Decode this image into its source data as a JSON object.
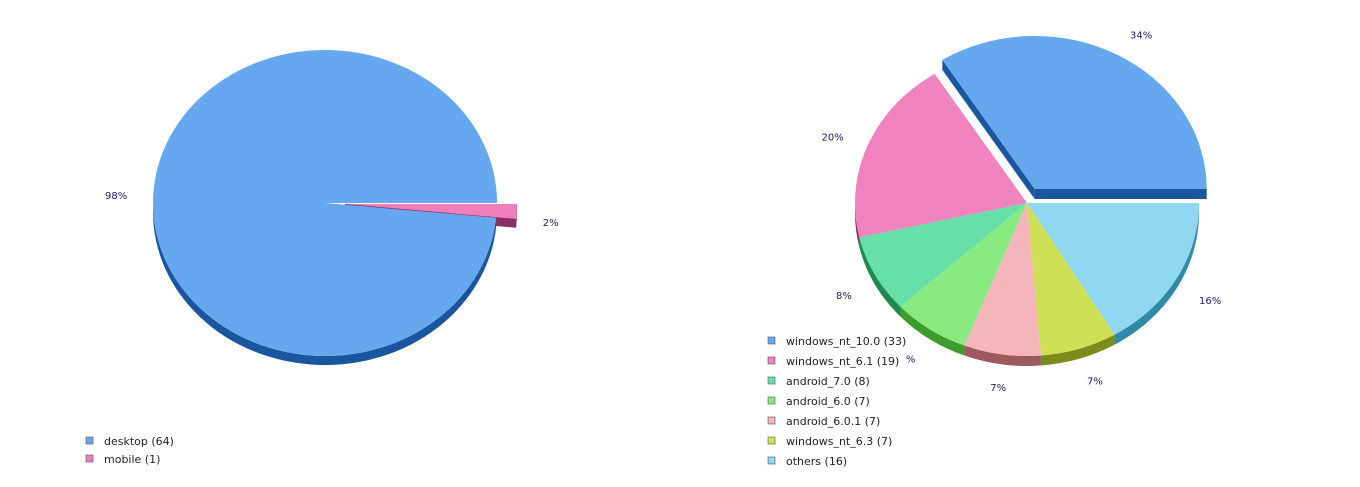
{
  "charts": [
    {
      "type": "pie",
      "slices": [
        {
          "label": "desktop",
          "value": 64,
          "pct_label": "98%",
          "color": "#66a8f0",
          "side": "#1a56a0"
        },
        {
          "label": "mobile",
          "value": 1,
          "pct_label": "2%",
          "color": "#f07fbc",
          "side": "#8a2f62"
        }
      ],
      "exploded": [
        "mobile"
      ]
    },
    {
      "type": "pie",
      "slices": [
        {
          "label": "windows_nt_10.0",
          "value": 33,
          "pct_label": "34%",
          "color": "#66a8f0",
          "side": "#1a56a0"
        },
        {
          "label": "windows_nt_6.1",
          "value": 19,
          "pct_label": "20%",
          "color": "#f083bd",
          "side": "#8a2f62"
        },
        {
          "label": "android_7.0",
          "value": 8,
          "pct_label": "8%",
          "color": "#66e0a8",
          "side": "#1f8a4f"
        },
        {
          "label": "android_6.0",
          "value": 7,
          "pct_label": "%",
          "color": "#88ea80",
          "side": "#3d9c2c"
        },
        {
          "label": "android_6.0.1",
          "value": 7,
          "pct_label": "7%",
          "color": "#f4b6ba",
          "side": "#9c5a5e"
        },
        {
          "label": "windows_nt_6.3",
          "value": 7,
          "pct_label": "7%",
          "color": "#cfe056",
          "side": "#7e8a1a"
        },
        {
          "label": "others",
          "value": 16,
          "pct_label": "16%",
          "color": "#8fd8f0",
          "side": "#2e8aa6"
        }
      ],
      "exploded": [
        "windows_nt_10.0"
      ]
    }
  ],
  "chart_data": [
    {
      "type": "pie",
      "categories": [
        "desktop",
        "mobile"
      ],
      "values": [
        64,
        1
      ],
      "percent_labels": [
        "98%",
        "2%"
      ],
      "legend": [
        "desktop (64)",
        "mobile (1)"
      ]
    },
    {
      "type": "pie",
      "categories": [
        "windows_nt_10.0",
        "windows_nt_6.1",
        "android_7.0",
        "android_6.0",
        "android_6.0.1",
        "windows_nt_6.3",
        "others"
      ],
      "values": [
        33,
        19,
        8,
        7,
        7,
        7,
        16
      ],
      "percent_labels": [
        "34%",
        "20%",
        "8%",
        "%",
        "7%",
        "7%",
        "16%"
      ],
      "legend": [
        "windows_nt_10.0 (33)",
        "windows_nt_6.1 (19)",
        "android_7.0 (8)",
        "android_6.0 (7)",
        "android_6.0.1 (7)",
        "windows_nt_6.3 (7)",
        "others (16)"
      ]
    }
  ]
}
